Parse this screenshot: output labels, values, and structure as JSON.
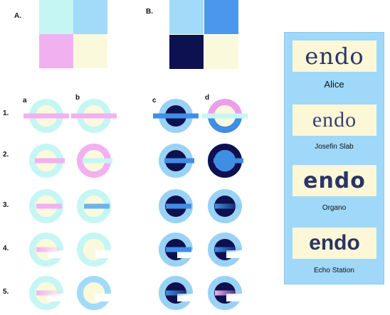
{
  "section_labels": {
    "a": "A.",
    "b": "B."
  },
  "column_labels": [
    "a",
    "b",
    "c",
    "d"
  ],
  "row_labels": [
    "1.",
    "2.",
    "3.",
    "4.",
    "5."
  ],
  "colors": {
    "aqua": "#c5f6f4",
    "sky": "#a2dafa",
    "pink": "#f1b1f1",
    "cream": "#fbf9dc",
    "navy": "#0d1150",
    "blue": "#3f8ee5",
    "panel": "#9fd8f8",
    "logo_text": "#2b3463"
  },
  "palettes": {
    "A": [
      "#c5f6f4",
      "#a2dafa",
      "#f1b1f1",
      "#fbf9dc"
    ],
    "B": [
      "#a2dafa",
      "#4c97ee",
      "#0d1150",
      "#fbf9dc"
    ]
  },
  "samples": [
    {
      "id": "1a",
      "ring": "#c5f6f4",
      "inner": "#fbf9dc",
      "bar": "#f1b1f1",
      "bar_style": "full",
      "gap": false
    },
    {
      "id": "1b",
      "ring": "#c5f6f4",
      "inner": "#fbf9dc",
      "bar": "#f1b1f1",
      "bar_style": "full",
      "gap": false
    },
    {
      "id": "1c",
      "ring": "#9ad2f6",
      "inner": "#0d1150",
      "bar": "#3f8ee5",
      "bar_style": "full",
      "gap": false
    },
    {
      "id": "1d",
      "ring": "#ec9fe9",
      "inner": "#fbf9dc",
      "bar": "#c5f6f4",
      "bar_style": "full",
      "gap": false,
      "bottom": "#3f8ee5"
    },
    {
      "id": "2a",
      "ring": "#c5f6f4",
      "inner": "#fbf9dc",
      "bar": "#f1b1f1",
      "bar_style": "tab",
      "gap": false
    },
    {
      "id": "2b",
      "ring": "#f1b1f1",
      "inner": "#fbf9dc",
      "bar": "#c5f6f4",
      "bar_style": "tab",
      "gap": false
    },
    {
      "id": "2c",
      "ring": "#9ad2f6",
      "inner": "#0d1150",
      "bar": "#3f8ee5",
      "bar_style": "tab",
      "gap": false
    },
    {
      "id": "2d",
      "ring": "#0d1150",
      "inner": "#3f8ee5",
      "bar": "#3f8ee5",
      "bar_style": "tab",
      "gap": false
    },
    {
      "id": "3a",
      "ring": "#c5f6f4",
      "inner": "#fbf9dc",
      "bar": "#f1b1f1",
      "bar_style": "inner",
      "gap": false
    },
    {
      "id": "3b",
      "ring": "#c5f6f4",
      "inner": "#fbf9dc",
      "bar": "#6ab3f0",
      "bar_style": "inner",
      "gap": false
    },
    {
      "id": "3c",
      "ring": "#9ad2f6",
      "inner": "#0d1150",
      "bar": "#3f8ee5",
      "bar_style": "inner",
      "gap": false
    },
    {
      "id": "3d",
      "ring": "#9ad2f6",
      "inner": "#0d1150",
      "bar": "#3f8ee5",
      "bar_style": "fade",
      "gap": false
    },
    {
      "id": "4a",
      "ring": "#c5f6f4",
      "inner": "#fbf9dc",
      "bar": "#f1b1f1",
      "bar_style": "fade",
      "gap": true
    },
    {
      "id": "4b",
      "ring": "#c5f6f4",
      "inner": "#fbf9dc",
      "bar": "#fbf9dc",
      "bar_style": "none",
      "gap": true
    },
    {
      "id": "4c",
      "ring": "#9ad2f6",
      "inner": "#0d1150",
      "bar": "#3f8ee5",
      "bar_style": "inner",
      "gap": true
    },
    {
      "id": "4d",
      "ring": "#9ad2f6",
      "inner": "#0d1150",
      "bar": "#3f8ee5",
      "bar_style": "fade",
      "gap": true
    },
    {
      "id": "5a",
      "ring": "#c5f6f4",
      "inner": "#fbf9dc",
      "bar": "#f1b1f1",
      "bar_style": "fade",
      "gap": true
    },
    {
      "id": "5b",
      "ring": "#a2dafa",
      "inner": "#fbf9dc",
      "bar": "#a2dafa",
      "bar_style": "none",
      "gap": true
    },
    {
      "id": "5c",
      "ring": "#9ad2f6",
      "inner": "#0d1150",
      "bar": "#3f8ee5",
      "bar_style": "fade",
      "gap": true
    },
    {
      "id": "5d",
      "ring": "#9ad2f6",
      "inner": "#0d1150",
      "bar": "#f1b1f1",
      "bar_style": "fade",
      "gap": true
    }
  ],
  "logo_panel": {
    "items": [
      {
        "word": "endo",
        "caption": "Alice"
      },
      {
        "word": "endo",
        "caption": "Josefin Slab"
      },
      {
        "word": "endo",
        "caption": "Organo"
      },
      {
        "word": "endo",
        "caption": "Echo Station"
      }
    ]
  }
}
